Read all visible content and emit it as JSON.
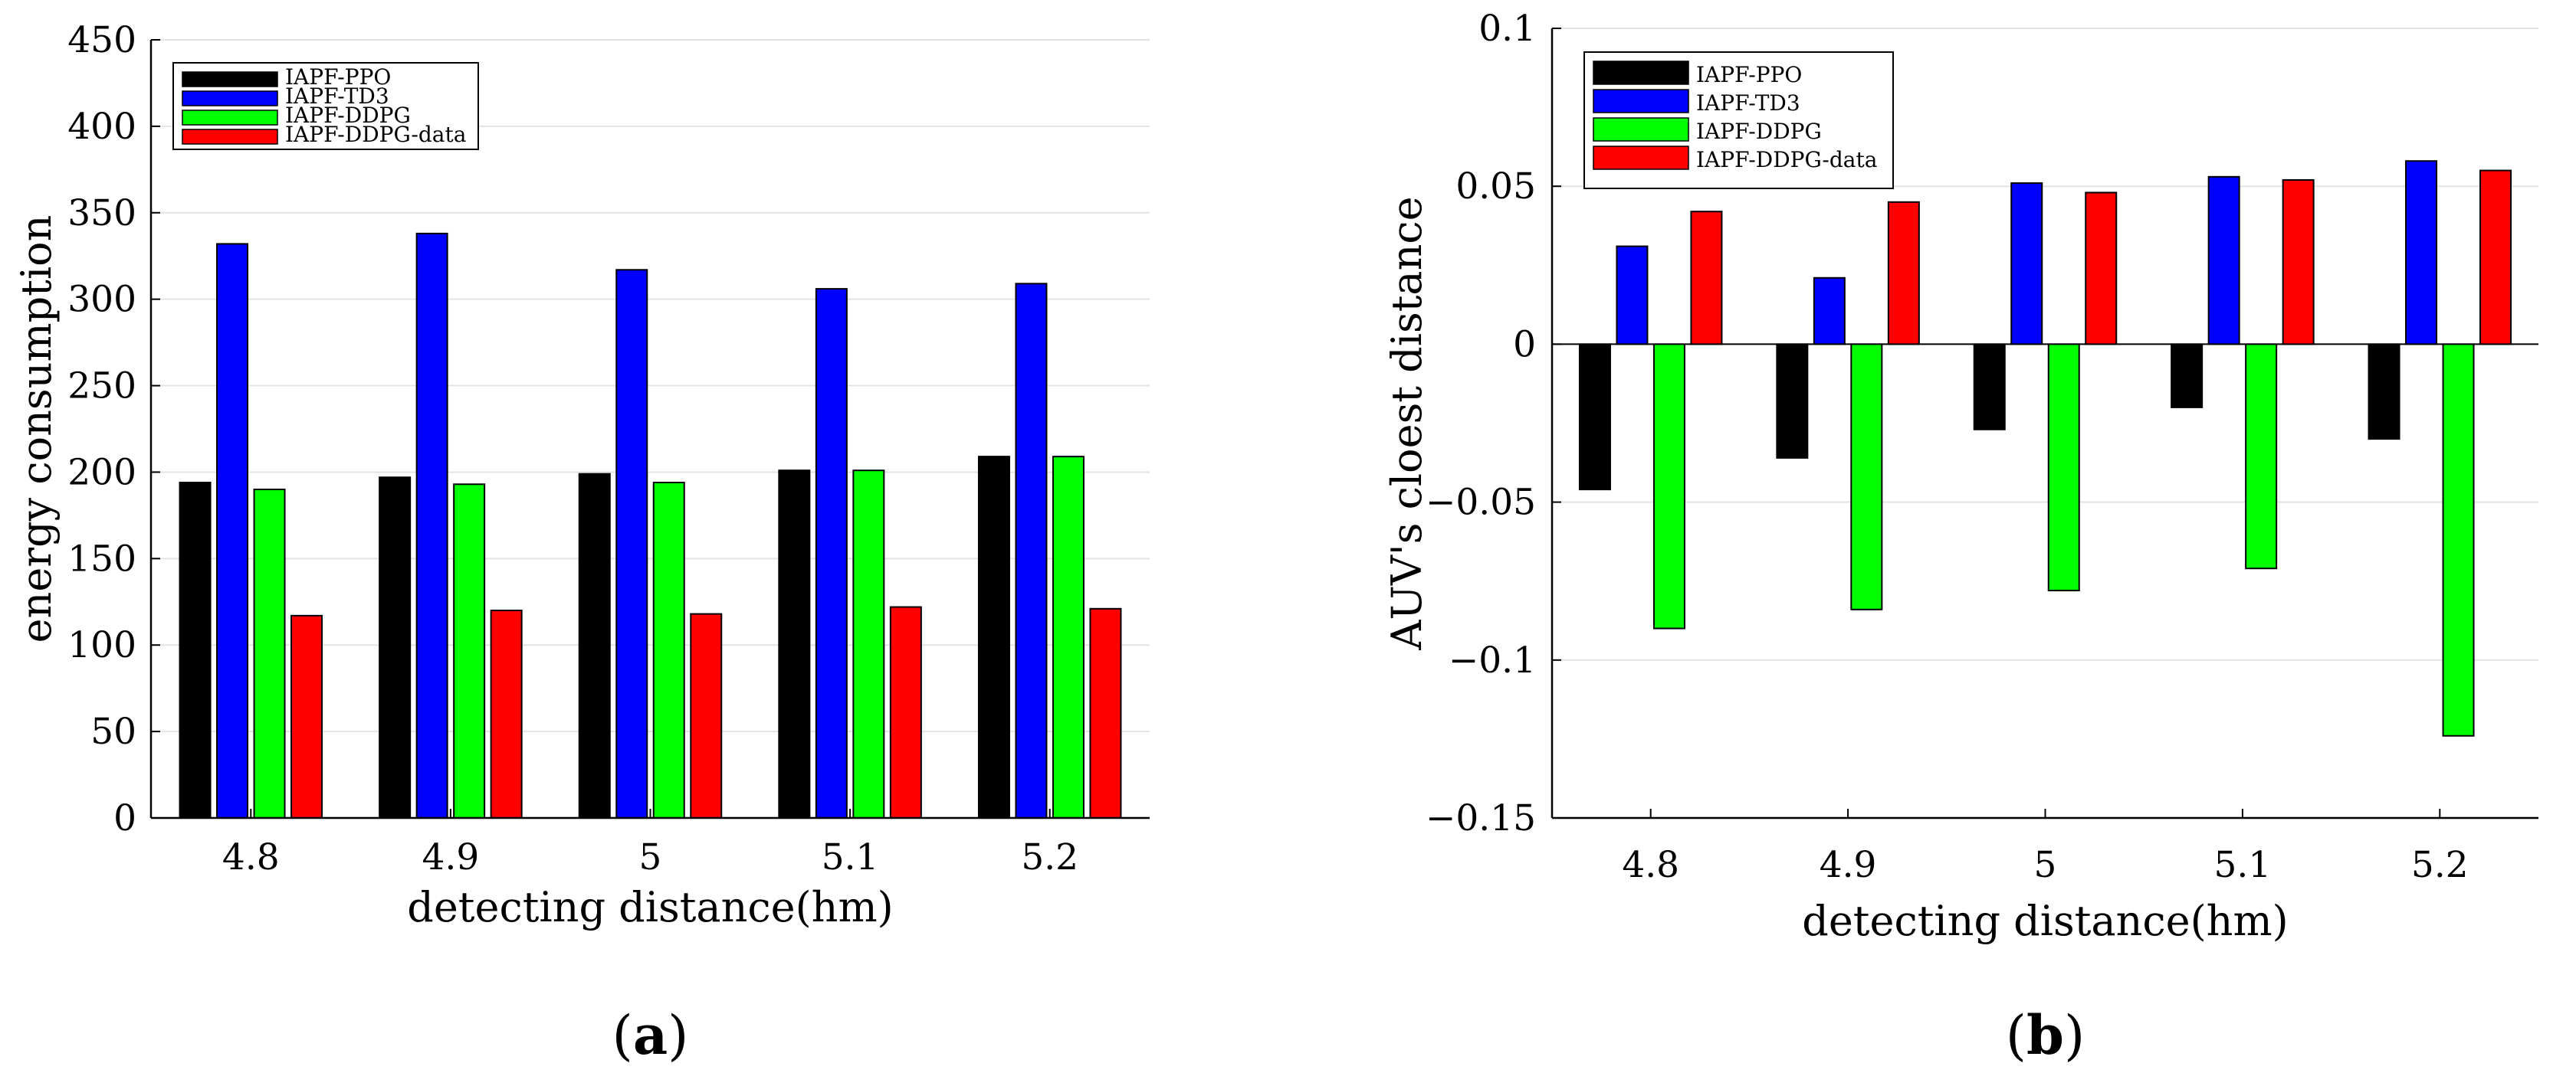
{
  "chart_data": [
    {
      "type": "bar",
      "panel_label": "a",
      "categories": [
        "4.8",
        "4.9",
        "5",
        "5.1",
        "5.2"
      ],
      "series": [
        {
          "name": "IAPF-PPO",
          "color": "#000000",
          "values": [
            194,
            197,
            199,
            201,
            209
          ]
        },
        {
          "name": "IAPF-TD3",
          "color": "#0000ff",
          "values": [
            332,
            338,
            317,
            306,
            309
          ]
        },
        {
          "name": "IAPF-DDPG",
          "color": "#00ff00",
          "values": [
            190,
            193,
            194,
            201,
            209
          ]
        },
        {
          "name": "IAPF-DDPG-data",
          "color": "#ff0000",
          "values": [
            117,
            120,
            118,
            122,
            121
          ]
        }
      ],
      "title": "",
      "xlabel": "detecting distance(hm)",
      "ylabel": "energy consumption",
      "ylim": [
        0,
        450
      ],
      "yticks": [
        0,
        50,
        100,
        150,
        200,
        250,
        300,
        350,
        400,
        450
      ],
      "ytick_labels": [
        "0",
        "50",
        "100",
        "150",
        "200",
        "250",
        "300",
        "350",
        "400",
        "450"
      ],
      "grid": true,
      "legend_position": "top-left"
    },
    {
      "type": "bar",
      "panel_label": "b",
      "categories": [
        "4.8",
        "4.9",
        "5",
        "5.1",
        "5.2"
      ],
      "series": [
        {
          "name": "IAPF-PPO",
          "color": "#000000",
          "values": [
            -0.046,
            -0.036,
            -0.027,
            -0.02,
            -0.03
          ]
        },
        {
          "name": "IAPF-TD3",
          "color": "#0000ff",
          "values": [
            0.031,
            0.021,
            0.051,
            0.053,
            0.058
          ]
        },
        {
          "name": "IAPF-DDPG",
          "color": "#00ff00",
          "values": [
            -0.09,
            -0.084,
            -0.078,
            -0.071,
            -0.124
          ]
        },
        {
          "name": "IAPF-DDPG-data",
          "color": "#ff0000",
          "values": [
            0.042,
            0.045,
            0.048,
            0.052,
            0.055
          ]
        }
      ],
      "title": "",
      "xlabel": "detecting distance(hm)",
      "ylabel": "AUV's cloest distance",
      "ylim": [
        -0.15,
        0.1
      ],
      "yticks": [
        -0.15,
        -0.1,
        -0.05,
        0,
        0.05,
        0.1
      ],
      "ytick_labels": [
        "−0.15",
        "−0.1",
        "−0.05",
        "0",
        "0.05",
        "0.1"
      ],
      "grid": true,
      "legend_position": "top-left"
    }
  ]
}
